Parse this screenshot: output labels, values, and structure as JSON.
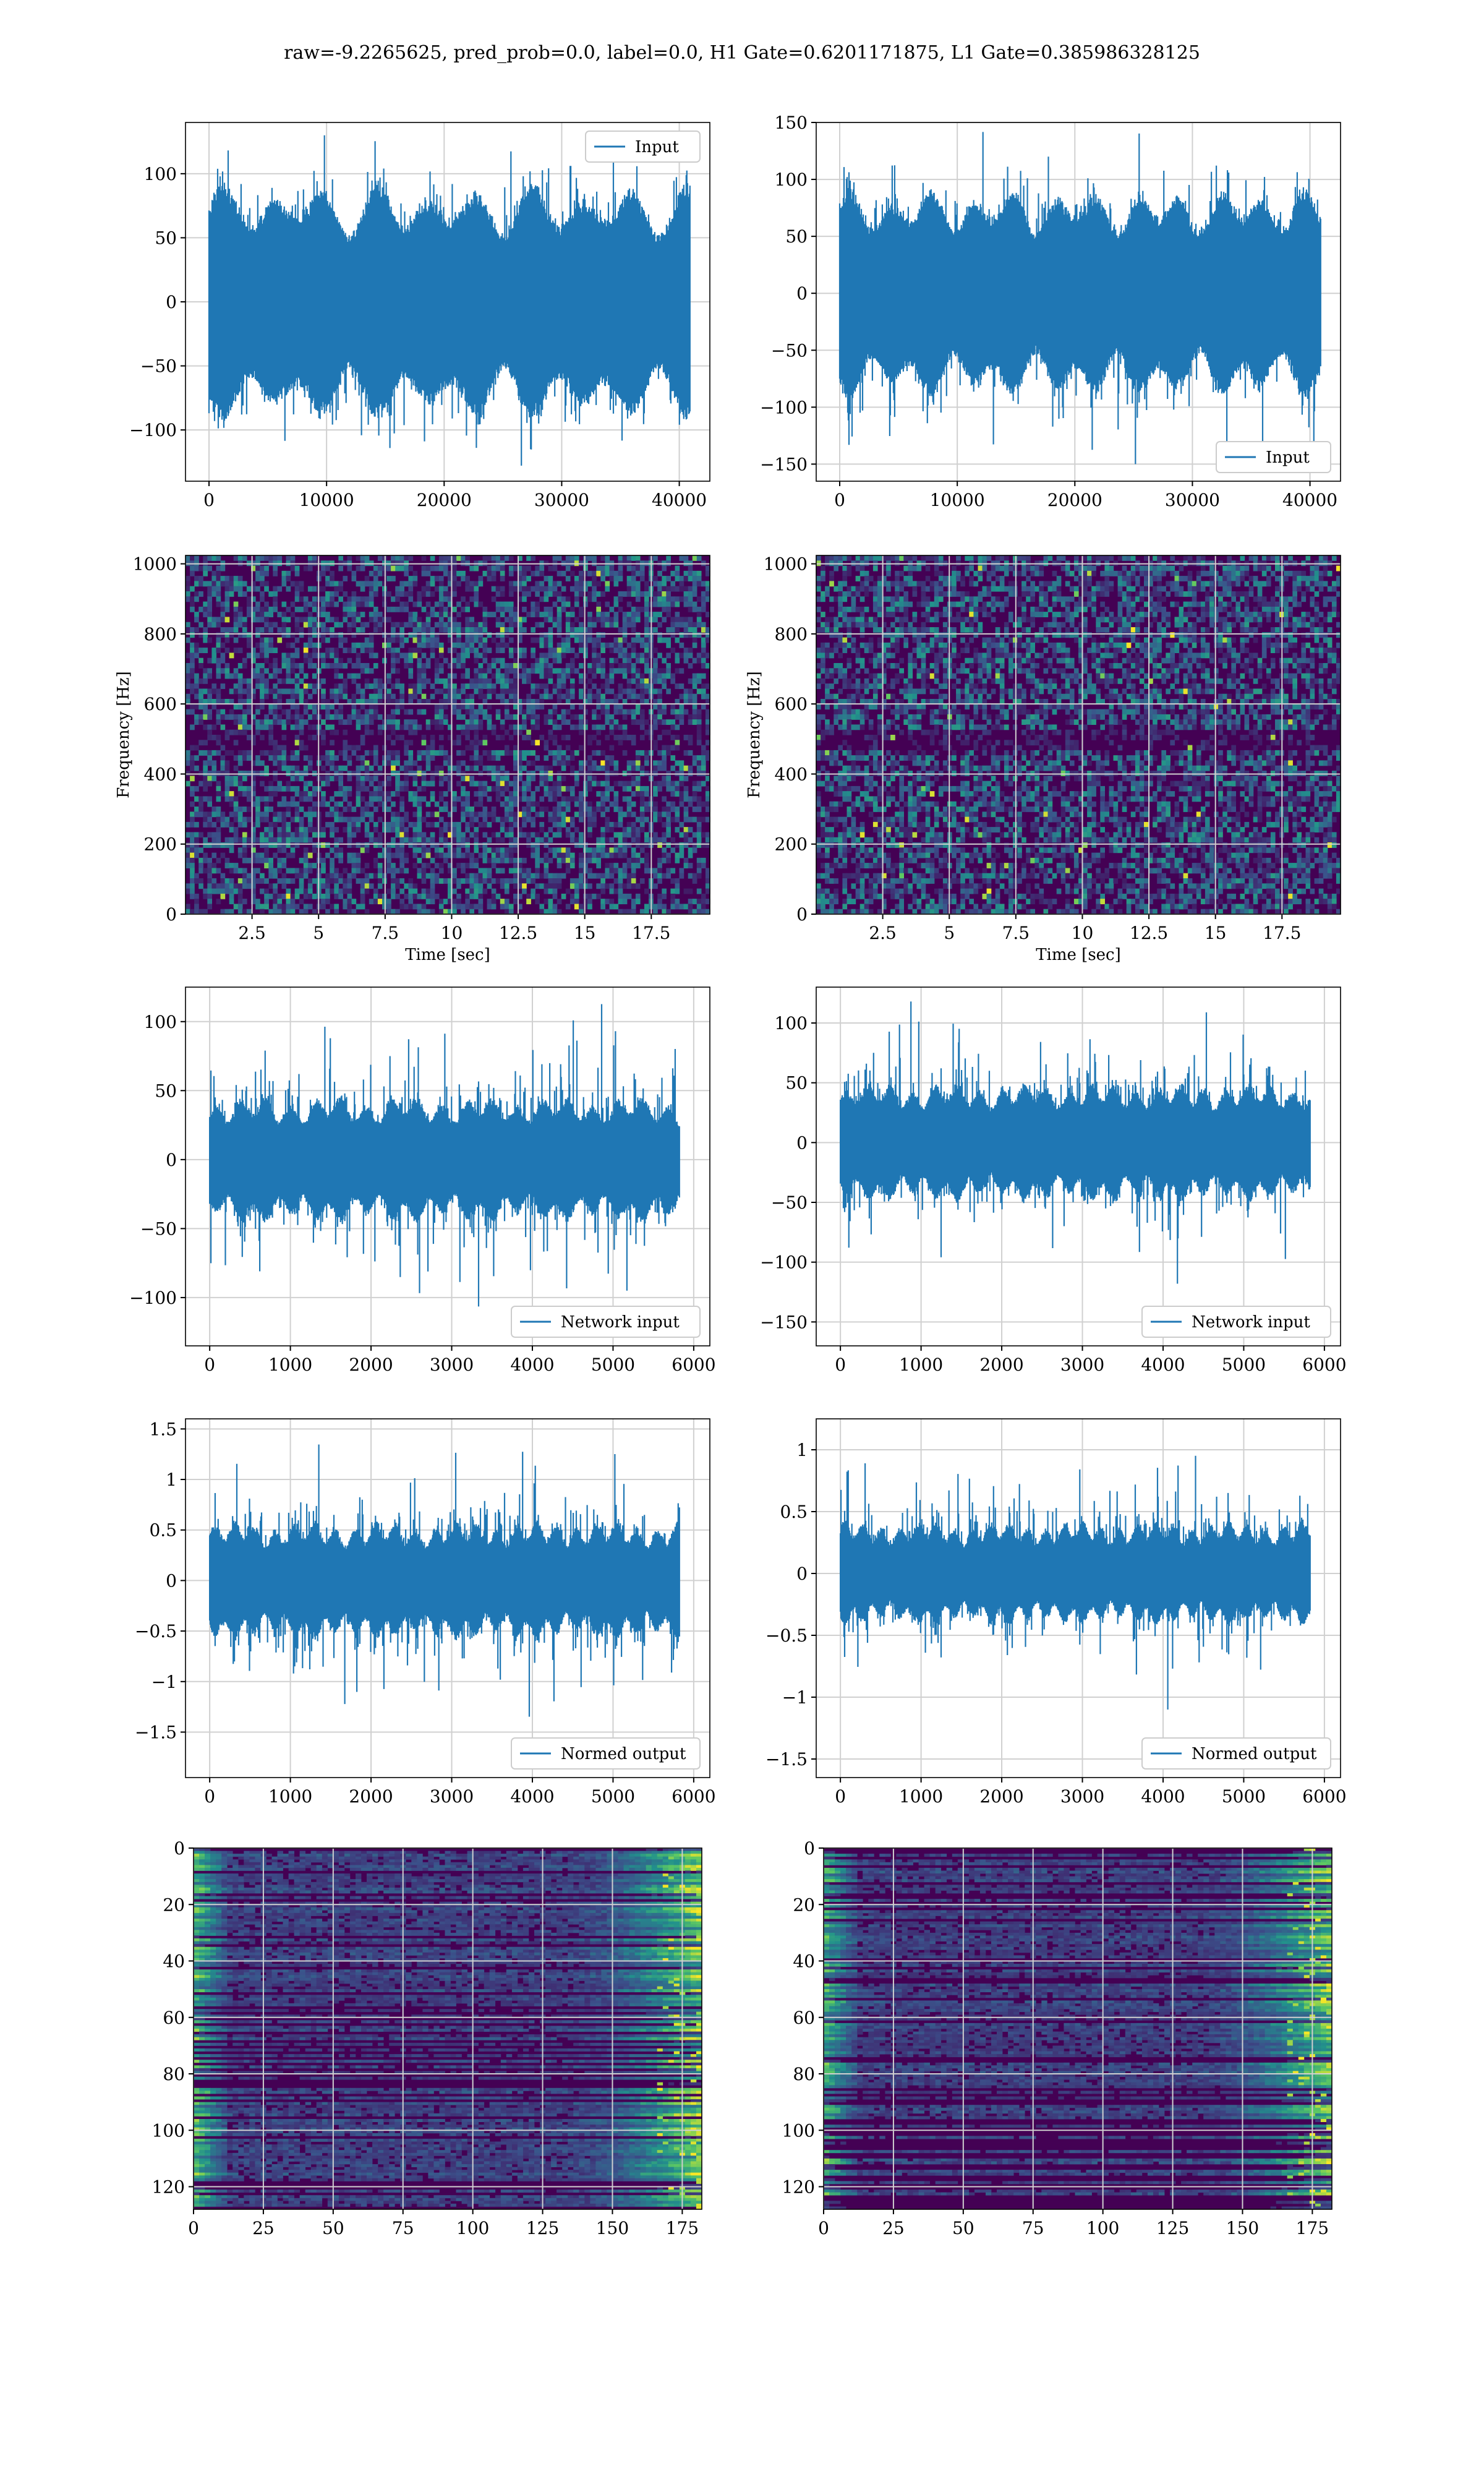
{
  "figure": {
    "title": "raw=-9.2265625, pred_prob=0.0, label=0.0, H1 Gate=0.6201171875, L1 Gate=0.385986328125"
  },
  "colors": {
    "line": "#1f77b4",
    "grid": "#d0d0d0",
    "heat_low": "#440154",
    "heat_mid": "#31688e",
    "heat_high": "#35b779",
    "heat_peak": "#fde725"
  },
  "chart_data": [
    {
      "id": "h1-input",
      "type": "line",
      "series": [
        {
          "name": "Input"
        }
      ],
      "legend_position": "upper right",
      "grid": true,
      "xlim": [
        -2000,
        42600
      ],
      "ylim": [
        -140,
        140
      ],
      "xticks": [
        0,
        10000,
        20000,
        30000,
        40000
      ],
      "yticks": [
        -100,
        -50,
        0,
        50,
        100
      ],
      "signal": {
        "n_samples": 40960,
        "core_amplitude": 70,
        "peak_amplitude": 130
      }
    },
    {
      "id": "l1-input",
      "type": "line",
      "series": [
        {
          "name": "Input"
        }
      ],
      "legend_position": "lower right",
      "grid": true,
      "xlim": [
        -2000,
        42600
      ],
      "ylim": [
        -165,
        150
      ],
      "xticks": [
        0,
        10000,
        20000,
        30000,
        40000
      ],
      "yticks": [
        -150,
        -100,
        -50,
        0,
        50,
        100,
        150
      ],
      "signal": {
        "n_samples": 40960,
        "core_amplitude": 70,
        "peak_amplitude": 150
      }
    },
    {
      "id": "h1-spectrogram",
      "type": "heatmap",
      "xlabel": "Time [sec]",
      "ylabel": "Frequency [Hz]",
      "grid": true,
      "xlim": [
        0,
        19.7
      ],
      "ylim": [
        0,
        1024
      ],
      "xticks": [
        2.5,
        5.0,
        7.5,
        10.0,
        12.5,
        15.0,
        17.5
      ],
      "yticks": [
        0,
        200,
        400,
        600,
        800,
        1000
      ],
      "dark_band_hz": 500,
      "colormap": "viridis"
    },
    {
      "id": "l1-spectrogram",
      "type": "heatmap",
      "xlabel": "Time [sec]",
      "ylabel": "Frequency [Hz]",
      "grid": true,
      "xlim": [
        0,
        19.7
      ],
      "ylim": [
        0,
        1024
      ],
      "xticks": [
        2.5,
        5.0,
        7.5,
        10.0,
        12.5,
        15.0,
        17.5
      ],
      "yticks": [
        0,
        200,
        400,
        600,
        800,
        1000
      ],
      "dark_band_hz": 500,
      "colormap": "viridis"
    },
    {
      "id": "h1-network-input",
      "type": "line",
      "series": [
        {
          "name": "Network input"
        }
      ],
      "legend_position": "lower right",
      "grid": true,
      "xlim": [
        -300,
        6200
      ],
      "ylim": [
        -135,
        125
      ],
      "xticks": [
        0,
        1000,
        2000,
        3000,
        4000,
        5000,
        6000
      ],
      "yticks": [
        -100,
        -50,
        0,
        50,
        100
      ],
      "signal": {
        "n_samples": 5830,
        "core_amplitude": 35,
        "peak_amplitude": 115
      }
    },
    {
      "id": "l1-network-input",
      "type": "line",
      "series": [
        {
          "name": "Network input"
        }
      ],
      "legend_position": "lower right",
      "grid": true,
      "xlim": [
        -300,
        6200
      ],
      "ylim": [
        -170,
        130
      ],
      "xticks": [
        0,
        1000,
        2000,
        3000,
        4000,
        5000,
        6000
      ],
      "yticks": [
        -150,
        -100,
        -50,
        0,
        50,
        100
      ],
      "signal": {
        "n_samples": 5830,
        "core_amplitude": 38,
        "peak_amplitude": 118
      }
    },
    {
      "id": "h1-normed-output",
      "type": "line",
      "series": [
        {
          "name": "Normed output"
        }
      ],
      "legend_position": "lower right",
      "grid": true,
      "xlim": [
        -300,
        6200
      ],
      "ylim": [
        -1.95,
        1.6
      ],
      "xticks": [
        0,
        1000,
        2000,
        3000,
        4000,
        5000,
        6000
      ],
      "yticks": [
        -1.5,
        -1.0,
        -0.5,
        0.0,
        0.5,
        1.0,
        1.5
      ],
      "signal": {
        "n_samples": 5830,
        "core_amplitude": 0.45,
        "peak_amplitude": 1.5
      }
    },
    {
      "id": "l1-normed-output",
      "type": "line",
      "series": [
        {
          "name": "Normed output"
        }
      ],
      "legend_position": "lower right",
      "grid": true,
      "xlim": [
        -300,
        6200
      ],
      "ylim": [
        -1.65,
        1.25
      ],
      "xticks": [
        0,
        1000,
        2000,
        3000,
        4000,
        5000,
        6000
      ],
      "yticks": [
        -1.5,
        -1.0,
        -0.5,
        0.0,
        0.5,
        1.0
      ],
      "signal": {
        "n_samples": 5830,
        "core_amplitude": 0.32,
        "peak_amplitude": 1.1
      }
    },
    {
      "id": "h1-feature-map",
      "type": "heatmap",
      "grid": true,
      "xlim": [
        0,
        182
      ],
      "ylim": [
        128,
        0
      ],
      "xticks": [
        0,
        25,
        50,
        75,
        100,
        125,
        150,
        175
      ],
      "yticks": [
        0,
        20,
        40,
        60,
        80,
        100,
        120
      ],
      "colormap": "viridis"
    },
    {
      "id": "l1-feature-map",
      "type": "heatmap",
      "grid": true,
      "xlim": [
        0,
        182
      ],
      "ylim": [
        128,
        0
      ],
      "xticks": [
        0,
        25,
        50,
        75,
        100,
        125,
        150,
        175
      ],
      "yticks": [
        0,
        20,
        40,
        60,
        80,
        100,
        120
      ],
      "colormap": "viridis"
    }
  ]
}
